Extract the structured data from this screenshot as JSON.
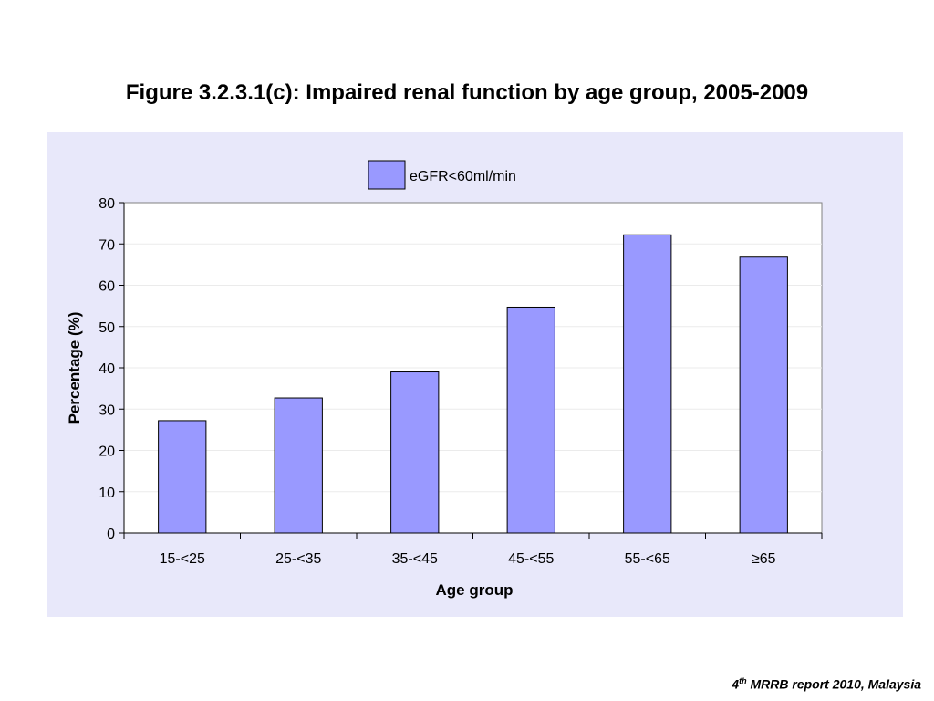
{
  "slide": {
    "title": "Figure 3.2.3.1(c): Impaired renal function by age group, 2005-2009"
  },
  "footer": {
    "ordinal": "4",
    "ordinal_suffix": "th",
    "text": " MRRB report 2010, Malaysia"
  },
  "colors": {
    "bar_fill": "#9999ff",
    "bar_stroke": "#000000",
    "plot_background": "#ffffff",
    "chart_background": "#e8e8fa"
  },
  "chart_data": {
    "type": "bar",
    "title": "Figure 3.2.3.1(c): Impaired renal function by age group, 2005-2009",
    "xlabel": "Age group",
    "ylabel": "Percentage (%)",
    "categories": [
      "15-<25",
      "25-<35",
      "35-<45",
      "45-<55",
      "55-<65",
      "≥65"
    ],
    "series": [
      {
        "name": "eGFR<60ml/min",
        "values": [
          27.2,
          32.7,
          39.0,
          54.7,
          72.2,
          66.8
        ]
      }
    ],
    "ylim": [
      0,
      80
    ],
    "yticks": [
      0,
      10,
      20,
      30,
      40,
      50,
      60,
      70,
      80
    ],
    "grid": true,
    "legend": "top-center"
  }
}
